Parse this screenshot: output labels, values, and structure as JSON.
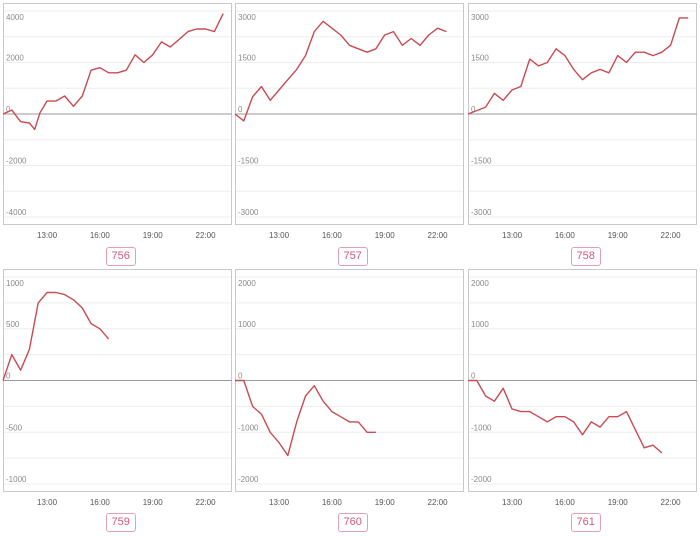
{
  "chart_data": [
    {
      "type": "line",
      "label": "756",
      "ylim": [
        -4000,
        4000
      ],
      "yticks": [
        4000,
        2000,
        0,
        -2000,
        -4000
      ],
      "xlim": [
        10.5,
        23.5
      ],
      "xticks": [
        "13:00",
        "16:00",
        "19:00",
        "22:00"
      ],
      "series": [
        {
          "x": [
            10.5,
            11.0,
            11.5,
            12.0,
            12.3,
            12.6,
            13.0,
            13.5,
            14.0,
            14.5,
            15.0,
            15.5,
            16.0,
            16.5,
            17.0,
            17.5,
            18.0,
            18.5,
            19.0,
            19.5,
            20.0,
            20.5,
            21.0,
            21.5,
            22.0,
            22.5,
            23.0
          ],
          "y": [
            0,
            150,
            -300,
            -350,
            -600,
            50,
            500,
            500,
            700,
            300,
            700,
            1700,
            1800,
            1600,
            1600,
            1700,
            2300,
            2000,
            2300,
            2800,
            2600,
            2900,
            3200,
            3300,
            3300,
            3200,
            3900
          ]
        }
      ]
    },
    {
      "type": "line",
      "label": "757",
      "ylim": [
        -3000,
        3000
      ],
      "yticks": [
        3000,
        1500,
        0,
        -1500,
        -3000
      ],
      "xlim": [
        10.5,
        23.5
      ],
      "xticks": [
        "13:00",
        "16:00",
        "19:00",
        "22:00"
      ],
      "series": [
        {
          "x": [
            10.5,
            11.0,
            11.5,
            12.0,
            12.5,
            13.0,
            13.5,
            14.0,
            14.5,
            15.0,
            15.5,
            16.0,
            16.5,
            17.0,
            17.5,
            18.0,
            18.5,
            19.0,
            19.5,
            20.0,
            20.5,
            21.0,
            21.5,
            22.0,
            22.5
          ],
          "y": [
            0,
            -200,
            500,
            800,
            400,
            700,
            1000,
            1300,
            1700,
            2400,
            2700,
            2500,
            2300,
            2000,
            1900,
            1800,
            1900,
            2300,
            2400,
            2000,
            2200,
            2000,
            2300,
            2500,
            2400
          ]
        }
      ]
    },
    {
      "type": "line",
      "label": "758",
      "ylim": [
        -3000,
        3000
      ],
      "yticks": [
        3000,
        1500,
        0,
        -1500,
        -3000
      ],
      "xlim": [
        10.5,
        23.5
      ],
      "xticks": [
        "13:00",
        "16:00",
        "19:00",
        "22:00"
      ],
      "series": [
        {
          "x": [
            10.5,
            11.0,
            11.5,
            12.0,
            12.5,
            13.0,
            13.5,
            14.0,
            14.5,
            15.0,
            15.5,
            16.0,
            16.5,
            17.0,
            17.5,
            18.0,
            18.5,
            19.0,
            19.5,
            20.0,
            20.5,
            21.0,
            21.5,
            22.0,
            22.5,
            23.0
          ],
          "y": [
            0,
            100,
            200,
            600,
            400,
            700,
            800,
            1600,
            1400,
            1500,
            1900,
            1700,
            1300,
            1000,
            1200,
            1300,
            1200,
            1700,
            1500,
            1800,
            1800,
            1700,
            1800,
            2000,
            2800,
            2800
          ]
        }
      ]
    },
    {
      "type": "line",
      "label": "759",
      "ylim": [
        -1000,
        1000
      ],
      "yticks": [
        1000,
        500,
        0,
        -500,
        -1000
      ],
      "xlim": [
        10.5,
        23.5
      ],
      "xticks": [
        "13:00",
        "16:00",
        "19:00",
        "22:00"
      ],
      "series": [
        {
          "x": [
            10.5,
            11.0,
            11.5,
            12.0,
            12.5,
            13.0,
            13.5,
            14.0,
            14.5,
            15.0,
            15.5,
            16.0,
            16.5
          ],
          "y": [
            0,
            250,
            100,
            300,
            750,
            850,
            850,
            830,
            780,
            700,
            550,
            500,
            400
          ]
        }
      ]
    },
    {
      "type": "line",
      "label": "760",
      "ylim": [
        -2000,
        2000
      ],
      "yticks": [
        2000,
        1000,
        0,
        -1000,
        -2000
      ],
      "xlim": [
        10.5,
        23.5
      ],
      "xticks": [
        "13:00",
        "16:00",
        "19:00",
        "22:00"
      ],
      "series": [
        {
          "x": [
            10.5,
            11.0,
            11.5,
            12.0,
            12.5,
            13.0,
            13.5,
            14.0,
            14.5,
            15.0,
            15.5,
            16.0,
            16.5,
            17.0,
            17.5,
            18.0,
            18.5
          ],
          "y": [
            0,
            0,
            -500,
            -650,
            -1000,
            -1200,
            -1450,
            -800,
            -300,
            -100,
            -400,
            -600,
            -700,
            -800,
            -800,
            -1000,
            -1000
          ]
        }
      ]
    },
    {
      "type": "line",
      "label": "761",
      "ylim": [
        -2000,
        2000
      ],
      "yticks": [
        2000,
        1000,
        0,
        -1000,
        -2000
      ],
      "xlim": [
        10.5,
        23.5
      ],
      "xticks": [
        "13:00",
        "16:00",
        "19:00",
        "22:00"
      ],
      "series": [
        {
          "x": [
            10.5,
            11.0,
            11.5,
            12.0,
            12.5,
            13.0,
            13.5,
            14.0,
            14.5,
            15.0,
            15.5,
            16.0,
            16.5,
            17.0,
            17.5,
            18.0,
            18.5,
            19.0,
            19.5,
            20.0,
            20.5,
            21.0,
            21.5
          ],
          "y": [
            0,
            0,
            -300,
            -400,
            -150,
            -550,
            -600,
            -600,
            -700,
            -800,
            -700,
            -700,
            -800,
            -1050,
            -800,
            -900,
            -700,
            -700,
            -600,
            -950,
            -1300,
            -1250,
            -1400
          ]
        }
      ]
    }
  ]
}
